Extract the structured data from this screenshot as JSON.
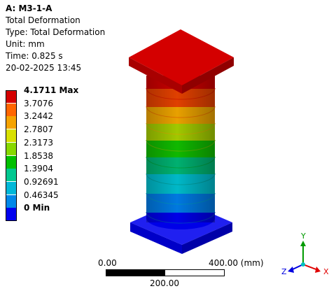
{
  "info": {
    "title": "A: M3-1-A",
    "lines": [
      "Total Deformation",
      "Type: Total Deformation",
      "Unit: mm",
      "Time: 0.825 s",
      "20-02-2025 13:45"
    ]
  },
  "legend": {
    "entries": [
      {
        "label": "4.1711 Max",
        "color": "#d40000",
        "bold": true
      },
      {
        "label": "3.7076",
        "color": "#ff6600",
        "bold": false
      },
      {
        "label": "3.2442",
        "color": "#f5a300",
        "bold": false
      },
      {
        "label": "2.7807",
        "color": "#d8e000",
        "bold": false
      },
      {
        "label": "2.3173",
        "color": "#88d800",
        "bold": false
      },
      {
        "label": "1.8538",
        "color": "#00c000",
        "bold": false
      },
      {
        "label": "1.3904",
        "color": "#00c890",
        "bold": false
      },
      {
        "label": "0.92691",
        "color": "#00b8d8",
        "bold": false
      },
      {
        "label": "0.46345",
        "color": "#0088e8",
        "bold": false
      },
      {
        "label": "0 Min",
        "color": "#0000ee",
        "bold": true
      }
    ]
  },
  "scale_bar": {
    "left_label": "0.00",
    "right_label": "400.00 (mm)",
    "mid_label": "200.00"
  },
  "triad": {
    "x_label": "X",
    "y_label": "Y",
    "z_label": "Z"
  }
}
